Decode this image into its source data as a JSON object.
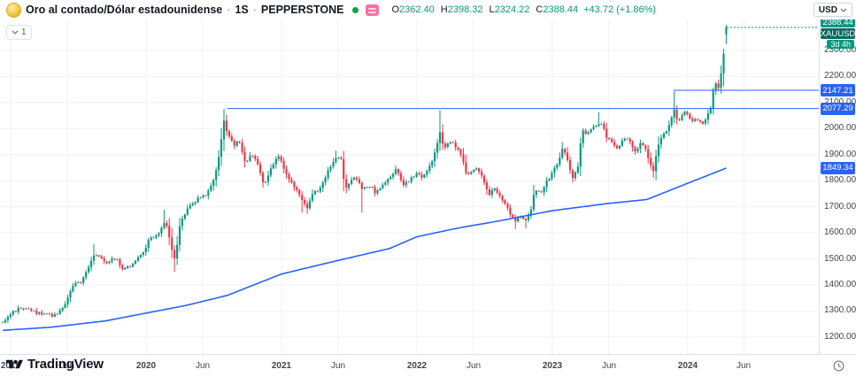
{
  "app": {
    "currency_button": "USD"
  },
  "header": {
    "title": "Oro al contado/Dólar estadounidense",
    "sep": "·",
    "interval": "1S",
    "exchange": "PEPPERSTONE",
    "ohlc": [
      {
        "label": "O",
        "value": "2362.40"
      },
      {
        "label": "H",
        "value": "2398.32"
      },
      {
        "label": "L",
        "value": "2324.22"
      },
      {
        "label": "C",
        "value": "2388.44"
      }
    ],
    "change": "+43.72 (+1.86%)"
  },
  "legend": {
    "collapsed_count": "1"
  },
  "footer": {
    "brand": "TradingView"
  },
  "price_scale": {
    "tick_labels": [
      "2300.00",
      "2200.00",
      "2100.00",
      "2000.00",
      "1900.00",
      "1800.00",
      "1700.00",
      "1600.00",
      "1500.00",
      "1400.00",
      "1300.00",
      "1200.00"
    ],
    "last_price": {
      "text": "2388.44",
      "bg": "#089981"
    },
    "symbol_label": {
      "text": "XAUUSD",
      "bg": "#07695c"
    },
    "countdown": {
      "text": "3d 4h",
      "bg": "#089981"
    },
    "line_badges": [
      {
        "text": "2147.21",
        "price": 2147.21
      },
      {
        "text": "2077.29",
        "price": 2077.29
      },
      {
        "text": "1849.34",
        "price": 1849.34
      }
    ]
  },
  "time_scale": {
    "ticks": [
      {
        "label": "2019",
        "t": 2019
      },
      {
        "label": "Jun",
        "t": 2019.4167
      },
      {
        "label": "2020",
        "t": 2020
      },
      {
        "label": "Jun",
        "t": 2020.4167
      },
      {
        "label": "2021",
        "t": 2021
      },
      {
        "label": "Jun",
        "t": 2021.4167
      },
      {
        "label": "2022",
        "t": 2022
      },
      {
        "label": "Jun",
        "t": 2022.4167
      },
      {
        "label": "2023",
        "t": 2023
      },
      {
        "label": "Jun",
        "t": 2023.4167
      },
      {
        "label": "2024",
        "t": 2024
      },
      {
        "label": "Jun",
        "t": 2024.4167
      }
    ]
  },
  "colors": {
    "up": "#089981",
    "down": "#f23645",
    "ma": "#2962ff",
    "level": "#2962ff",
    "grid": "#eef1f6",
    "axis_text": "#40444d",
    "badge_text": "#ffffff"
  },
  "chart_data": {
    "type": "candlestick",
    "title": "Oro al contado/Dólar estadounidense (XAUUSD) · 1S · PEPPERSTONE",
    "symbol": "XAUUSD",
    "timeframe": "1W",
    "xlim": [
      2018.92,
      2024.97
    ],
    "ylim": [
      1135,
      2419
    ],
    "y_ticks": [
      2300,
      2200,
      2100,
      2000,
      1900,
      1800,
      1700,
      1600,
      1500,
      1400,
      1300,
      1200
    ],
    "last_candle": {
      "t": 2024.29,
      "open": 2362.4,
      "high": 2398.32,
      "low": 2324.22,
      "close": 2388.44
    },
    "levels": [
      {
        "price": 2077.29,
        "from_t": 2020.6
      },
      {
        "price": 2147.21,
        "from_t": 2023.9
      }
    ],
    "ma_points": [
      [
        2018.92,
        1225
      ],
      [
        2019.3,
        1238
      ],
      [
        2019.7,
        1262
      ],
      [
        2020.0,
        1292
      ],
      [
        2020.3,
        1322
      ],
      [
        2020.6,
        1360
      ],
      [
        2021.0,
        1442
      ],
      [
        2021.4,
        1492
      ],
      [
        2021.8,
        1540
      ],
      [
        2022.0,
        1585
      ],
      [
        2022.3,
        1618
      ],
      [
        2022.6,
        1645
      ],
      [
        2023.0,
        1685
      ],
      [
        2023.4,
        1712
      ],
      [
        2023.7,
        1728
      ],
      [
        2024.0,
        1790
      ],
      [
        2024.29,
        1849.34
      ]
    ],
    "close_anchors": [
      [
        2018.92,
        1252
      ],
      [
        2019.0,
        1285
      ],
      [
        2019.06,
        1312
      ],
      [
        2019.12,
        1306
      ],
      [
        2019.19,
        1295
      ],
      [
        2019.27,
        1286
      ],
      [
        2019.33,
        1280
      ],
      [
        2019.4,
        1320
      ],
      [
        2019.46,
        1400
      ],
      [
        2019.52,
        1414
      ],
      [
        2019.58,
        1480
      ],
      [
        2019.62,
        1520
      ],
      [
        2019.67,
        1506
      ],
      [
        2019.71,
        1482
      ],
      [
        2019.77,
        1505
      ],
      [
        2019.83,
        1463
      ],
      [
        2019.88,
        1472
      ],
      [
        2019.96,
        1510
      ],
      [
        2020.02,
        1572
      ],
      [
        2020.08,
        1586
      ],
      [
        2020.14,
        1650
      ],
      [
        2020.17,
        1580
      ],
      [
        2020.21,
        1498
      ],
      [
        2020.25,
        1630
      ],
      [
        2020.31,
        1700
      ],
      [
        2020.38,
        1730
      ],
      [
        2020.44,
        1745
      ],
      [
        2020.5,
        1800
      ],
      [
        2020.54,
        1900
      ],
      [
        2020.575,
        2035
      ],
      [
        2020.6,
        1985
      ],
      [
        2020.65,
        1940
      ],
      [
        2020.69,
        1950
      ],
      [
        2020.73,
        1866
      ],
      [
        2020.77,
        1900
      ],
      [
        2020.81,
        1880
      ],
      [
        2020.87,
        1788
      ],
      [
        2020.92,
        1843
      ],
      [
        2020.98,
        1898
      ],
      [
        2021.03,
        1828
      ],
      [
        2021.09,
        1784
      ],
      [
        2021.15,
        1727
      ],
      [
        2021.19,
        1700
      ],
      [
        2021.23,
        1745
      ],
      [
        2021.29,
        1777
      ],
      [
        2021.35,
        1842
      ],
      [
        2021.41,
        1892
      ],
      [
        2021.44,
        1878
      ],
      [
        2021.47,
        1764
      ],
      [
        2021.52,
        1808
      ],
      [
        2021.56,
        1812
      ],
      [
        2021.6,
        1764
      ],
      [
        2021.65,
        1782
      ],
      [
        2021.69,
        1757
      ],
      [
        2021.73,
        1768
      ],
      [
        2021.77,
        1793
      ],
      [
        2021.81,
        1818
      ],
      [
        2021.85,
        1846
      ],
      [
        2021.9,
        1783
      ],
      [
        2021.95,
        1804
      ],
      [
        2021.99,
        1829
      ],
      [
        2022.04,
        1817
      ],
      [
        2022.08,
        1842
      ],
      [
        2022.13,
        1899
      ],
      [
        2022.17,
        1985
      ],
      [
        2022.2,
        1922
      ],
      [
        2022.24,
        1958
      ],
      [
        2022.28,
        1932
      ],
      [
        2022.33,
        1897
      ],
      [
        2022.37,
        1812
      ],
      [
        2022.41,
        1846
      ],
      [
        2022.45,
        1840
      ],
      [
        2022.49,
        1813
      ],
      [
        2022.53,
        1742
      ],
      [
        2022.57,
        1766
      ],
      [
        2022.61,
        1747
      ],
      [
        2022.65,
        1712
      ],
      [
        2022.69,
        1675
      ],
      [
        2022.72,
        1645
      ],
      [
        2022.76,
        1657
      ],
      [
        2022.8,
        1645
      ],
      [
        2022.84,
        1682
      ],
      [
        2022.87,
        1771
      ],
      [
        2022.92,
        1754
      ],
      [
        2022.96,
        1798
      ],
      [
        2023.0,
        1826
      ],
      [
        2023.04,
        1870
      ],
      [
        2023.08,
        1926
      ],
      [
        2023.12,
        1862
      ],
      [
        2023.15,
        1811
      ],
      [
        2023.19,
        1856
      ],
      [
        2023.22,
        1989
      ],
      [
        2023.26,
        1978
      ],
      [
        2023.3,
        2004
      ],
      [
        2023.34,
        2016
      ],
      [
        2023.37,
        2011
      ],
      [
        2023.41,
        1958
      ],
      [
        2023.45,
        1943
      ],
      [
        2023.49,
        1920
      ],
      [
        2023.53,
        1961
      ],
      [
        2023.57,
        1955
      ],
      [
        2023.61,
        1915
      ],
      [
        2023.65,
        1940
      ],
      [
        2023.69,
        1925
      ],
      [
        2023.72,
        1865
      ],
      [
        2023.745,
        1833
      ],
      [
        2023.78,
        1933
      ],
      [
        2023.82,
        1981
      ],
      [
        2023.86,
        2006
      ],
      [
        2023.9,
        2072
      ],
      [
        2023.93,
        2020
      ],
      [
        2023.96,
        2054
      ],
      [
        2024.0,
        2063
      ],
      [
        2024.03,
        2030
      ],
      [
        2024.07,
        2040
      ],
      [
        2024.11,
        2024
      ],
      [
        2024.14,
        2035
      ],
      [
        2024.17,
        2083
      ],
      [
        2024.2,
        2179
      ],
      [
        2024.23,
        2156
      ],
      [
        2024.255,
        2233
      ],
      [
        2024.275,
        2330
      ],
      [
        2024.29,
        2388.44
      ]
    ],
    "spike_highs": [
      [
        2019.62,
        1557
      ],
      [
        2020.14,
        1689
      ],
      [
        2020.575,
        2074.8
      ],
      [
        2021.41,
        1916
      ],
      [
        2022.17,
        2070.4
      ],
      [
        2023.08,
        1949
      ],
      [
        2023.34,
        2063
      ],
      [
        2023.9,
        2146.6
      ]
    ],
    "spike_lows": [
      [
        2020.21,
        1451
      ],
      [
        2021.15,
        1677
      ],
      [
        2021.19,
        1673
      ],
      [
        2021.6,
        1677
      ],
      [
        2022.72,
        1614.9
      ],
      [
        2022.8,
        1617
      ],
      [
        2023.15,
        1804.8
      ],
      [
        2023.745,
        1810.5
      ]
    ]
  }
}
